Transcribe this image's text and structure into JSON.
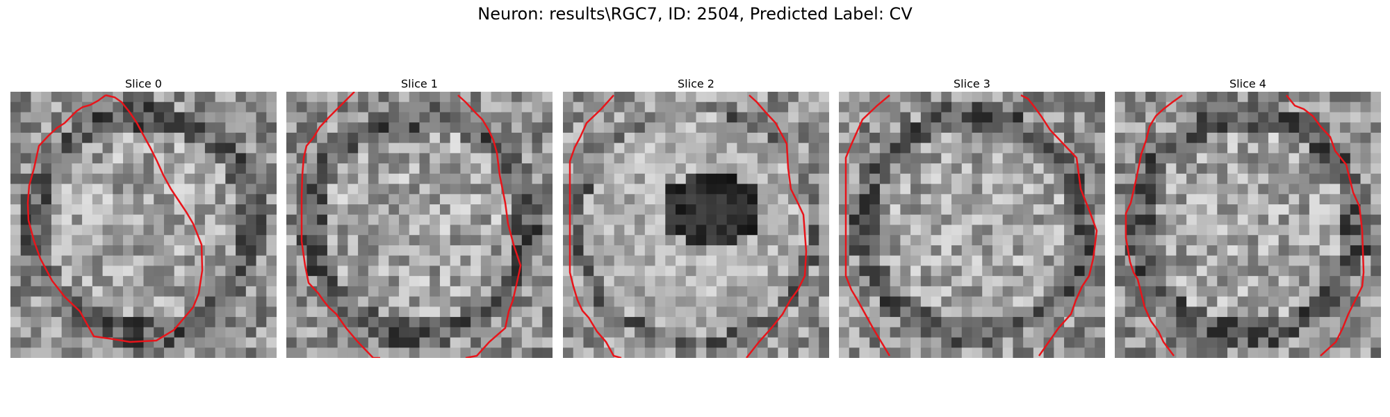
{
  "figure": {
    "title": "Neuron: results\\RGC7, ID: 2504, Predicted Label: CV"
  },
  "panels": [
    {
      "title": "Slice 0",
      "seed": 11,
      "features": "ring"
    },
    {
      "title": "Slice 1",
      "seed": 23,
      "features": "ring"
    },
    {
      "title": "Slice 2",
      "seed": 37,
      "features": "dark-center"
    },
    {
      "title": "Slice 3",
      "seed": 51,
      "features": "ring"
    },
    {
      "title": "Slice 4",
      "seed": 67,
      "features": "ring"
    }
  ],
  "contour_color": "#e8141a",
  "colormap": "gray"
}
